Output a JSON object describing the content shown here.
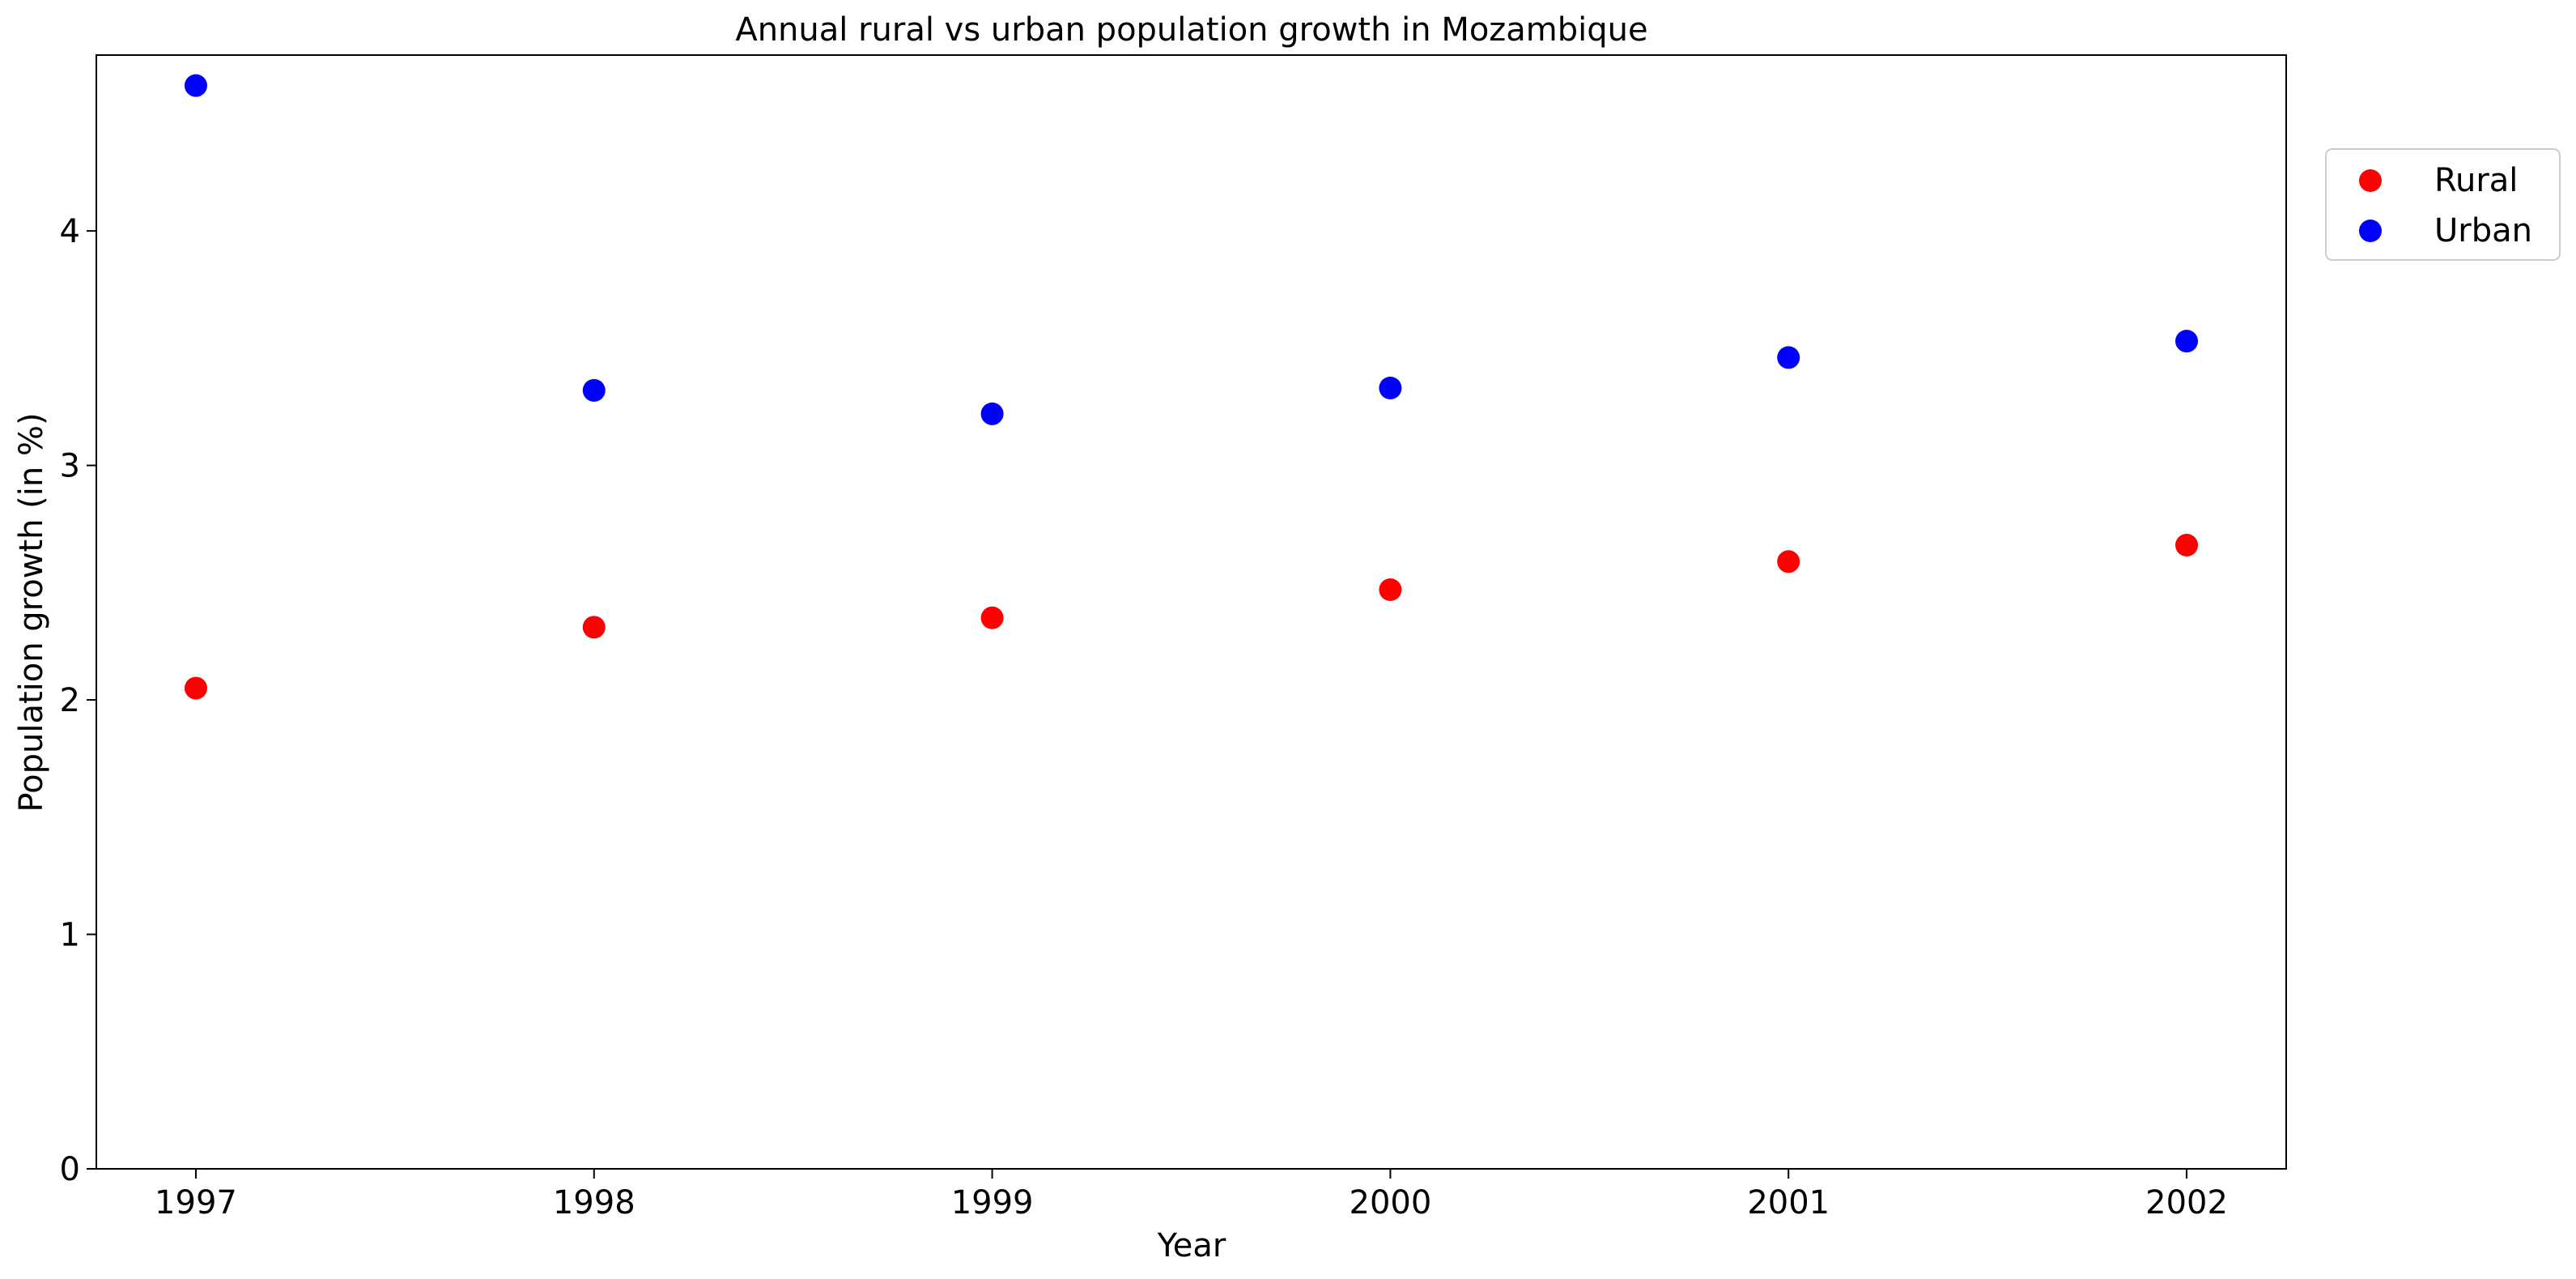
{
  "chart_data": {
    "type": "scatter",
    "title": "Annual rural vs urban population growth in Mozambique",
    "xlabel": "Year",
    "ylabel": "Population growth (in %)",
    "x": [
      1997,
      1998,
      1999,
      2000,
      2001,
      2002
    ],
    "x_ticks": [
      "1997",
      "1998",
      "1999",
      "2000",
      "2001",
      "2002"
    ],
    "y_ticks": [
      "0",
      "1",
      "2",
      "3",
      "4"
    ],
    "xlim": [
      1996.75,
      2002.25
    ],
    "ylim": [
      0,
      4.75
    ],
    "grid": false,
    "legend_position": "outside-top-right",
    "series": [
      {
        "name": "Rural",
        "color": "#ff0000",
        "values": [
          2.05,
          2.31,
          2.35,
          2.47,
          2.59,
          2.66
        ]
      },
      {
        "name": "Urban",
        "color": "#0000ff",
        "values": [
          4.62,
          3.32,
          3.22,
          3.33,
          3.46,
          3.53
        ]
      }
    ]
  }
}
